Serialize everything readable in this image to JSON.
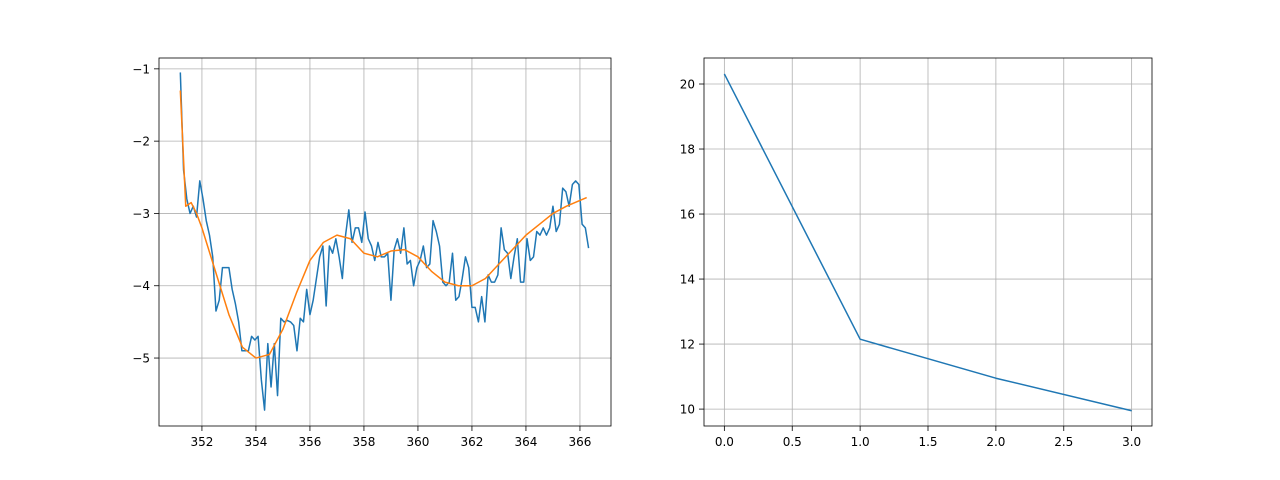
{
  "chart_data": [
    {
      "type": "line",
      "xlim": [
        350.41,
        367.15
      ],
      "ylim": [
        -5.94,
        -0.85
      ],
      "xticks": [
        352,
        354,
        356,
        358,
        360,
        362,
        364,
        366
      ],
      "yticks": [
        {
          "value": -5,
          "label": "−5"
        },
        {
          "value": -4,
          "label": "−4"
        },
        {
          "value": -3,
          "label": "−3"
        },
        {
          "value": -2,
          "label": "−2"
        },
        {
          "value": -1,
          "label": "−1"
        }
      ],
      "grid": true,
      "series": [
        {
          "color": "#1f77b4",
          "x": [
            351.2,
            351.32,
            351.44,
            351.56,
            351.68,
            351.8,
            351.92,
            352.04,
            352.16,
            352.28,
            352.4,
            352.52,
            352.64,
            352.76,
            352.88,
            353.0,
            353.12,
            353.24,
            353.36,
            353.48,
            353.6,
            353.72,
            353.84,
            353.96,
            354.08,
            354.2,
            354.32,
            354.44,
            354.56,
            354.68,
            354.8,
            354.92,
            355.04,
            355.16,
            355.28,
            355.4,
            355.52,
            355.64,
            355.76,
            355.88,
            356.0,
            356.12,
            356.24,
            356.36,
            356.48,
            356.6,
            356.72,
            356.84,
            356.96,
            357.08,
            357.2,
            357.32,
            357.44,
            357.56,
            357.68,
            357.8,
            357.92,
            358.04,
            358.16,
            358.28,
            358.4,
            358.52,
            358.64,
            358.76,
            358.88,
            359.0,
            359.12,
            359.24,
            359.36,
            359.48,
            359.6,
            359.72,
            359.84,
            359.96,
            360.08,
            360.2,
            360.32,
            360.44,
            360.56,
            360.68,
            360.8,
            360.92,
            361.04,
            361.16,
            361.28,
            361.4,
            361.52,
            361.64,
            361.76,
            361.88,
            362.0,
            362.12,
            362.24,
            362.36,
            362.48,
            362.6,
            362.72,
            362.84,
            362.96,
            363.08,
            363.2,
            363.32,
            363.44,
            363.56,
            363.68,
            363.8,
            363.92,
            364.04,
            364.16,
            364.28,
            364.4,
            364.52,
            364.64,
            364.76,
            364.88,
            365.0,
            365.12,
            365.24,
            365.36,
            365.48,
            365.6,
            365.72,
            365.84,
            365.96,
            366.08,
            366.2,
            366.32
          ],
          "values": [
            -1.05,
            -2.4,
            -2.8,
            -3.0,
            -2.9,
            -3.05,
            -2.55,
            -2.8,
            -3.1,
            -3.3,
            -3.6,
            -4.35,
            -4.2,
            -3.75,
            -3.75,
            -3.75,
            -4.05,
            -4.25,
            -4.5,
            -4.9,
            -4.9,
            -4.9,
            -4.7,
            -4.75,
            -4.7,
            -5.3,
            -5.72,
            -4.8,
            -5.4,
            -4.8,
            -5.52,
            -4.45,
            -4.5,
            -4.48,
            -4.5,
            -4.55,
            -4.9,
            -4.45,
            -4.5,
            -4.05,
            -4.4,
            -4.2,
            -3.9,
            -3.6,
            -3.45,
            -4.28,
            -3.45,
            -3.55,
            -3.35,
            -3.6,
            -3.9,
            -3.3,
            -2.95,
            -3.4,
            -3.2,
            -3.2,
            -3.4,
            -2.98,
            -3.35,
            -3.45,
            -3.65,
            -3.4,
            -3.6,
            -3.6,
            -3.55,
            -4.2,
            -3.5,
            -3.35,
            -3.55,
            -3.2,
            -3.7,
            -3.65,
            -4.0,
            -3.75,
            -3.65,
            -3.45,
            -3.75,
            -3.7,
            -3.1,
            -3.25,
            -3.45,
            -3.95,
            -4.0,
            -3.95,
            -3.55,
            -4.2,
            -4.15,
            -3.9,
            -3.6,
            -3.75,
            -4.3,
            -4.3,
            -4.5,
            -4.15,
            -4.5,
            -3.85,
            -3.95,
            -3.95,
            -3.85,
            -3.2,
            -3.5,
            -3.55,
            -3.9,
            -3.6,
            -3.35,
            -3.95,
            -3.95,
            -3.35,
            -3.65,
            -3.6,
            -3.25,
            -3.3,
            -3.2,
            -3.3,
            -3.2,
            -2.9,
            -3.25,
            -3.15,
            -2.65,
            -2.7,
            -2.9,
            -2.6,
            -2.55,
            -2.6,
            -3.15,
            -3.2,
            -3.48
          ]
        },
        {
          "color": "#ff7f0e",
          "x": [
            351.2,
            351.4,
            351.6,
            351.8,
            352.0,
            352.5,
            353.0,
            353.5,
            354.0,
            354.5,
            355.0,
            355.5,
            356.0,
            356.5,
            357.0,
            357.5,
            358.0,
            358.5,
            359.0,
            359.5,
            360.0,
            360.5,
            361.0,
            361.5,
            362.0,
            362.5,
            363.0,
            363.5,
            364.0,
            364.5,
            365.0,
            365.5,
            366.0,
            366.25
          ],
          "values": [
            -1.3,
            -2.9,
            -2.85,
            -3.0,
            -3.2,
            -3.8,
            -4.4,
            -4.85,
            -5.0,
            -4.95,
            -4.6,
            -4.1,
            -3.65,
            -3.4,
            -3.3,
            -3.35,
            -3.55,
            -3.6,
            -3.52,
            -3.5,
            -3.6,
            -3.8,
            -3.95,
            -4.0,
            -4.0,
            -3.9,
            -3.7,
            -3.5,
            -3.3,
            -3.15,
            -3.0,
            -2.9,
            -2.82,
            -2.78
          ]
        }
      ]
    },
    {
      "type": "line",
      "xlim": [
        -0.15,
        3.15
      ],
      "ylim": [
        9.48,
        20.8
      ],
      "xticks": [
        {
          "value": 0,
          "label": "0.0"
        },
        {
          "value": 0.5,
          "label": "0.5"
        },
        {
          "value": 1,
          "label": "1.0"
        },
        {
          "value": 1.5,
          "label": "1.5"
        },
        {
          "value": 2,
          "label": "2.0"
        },
        {
          "value": 2.5,
          "label": "2.5"
        },
        {
          "value": 3,
          "label": "3.0"
        }
      ],
      "yticks": [
        10,
        12,
        14,
        16,
        18,
        20
      ],
      "grid": true,
      "x": [
        0,
        1,
        2,
        3
      ],
      "series": [
        {
          "color": "#1f77b4",
          "values": [
            20.31,
            12.15,
            10.95,
            9.95
          ]
        }
      ]
    }
  ]
}
